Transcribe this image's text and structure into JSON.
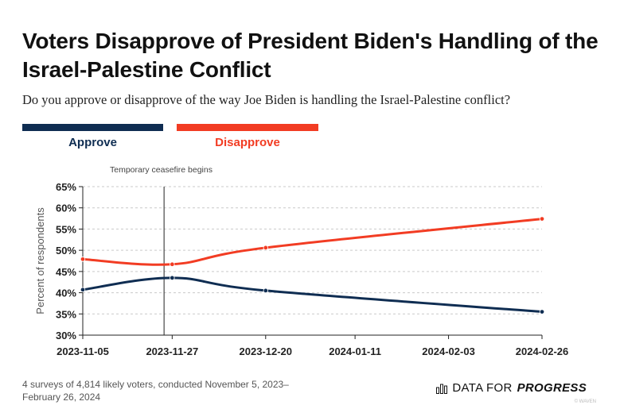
{
  "title": "Voters Disapprove of President Biden's Handling of the Israel-Palestine Conflict",
  "subtitle": "Do you approve or disapprove of the way Joe Biden is handling the Israel-Palestine conflict?",
  "colors": {
    "approve": "#0f2d52",
    "disapprove": "#f23c23",
    "grid": "#c9c9c9",
    "axis": "#222222"
  },
  "chart_data": {
    "type": "line",
    "title": "Voters Disapprove of President Biden's Handling of the Israel-Palestine Conflict",
    "subtitle": "Do you approve or disapprove of the way Joe Biden is handling the Israel-Palestine conflict?",
    "ylabel": "Percent of respondents",
    "xlabel": "",
    "x_ticks": [
      "2023-11-05",
      "2023-11-27",
      "2023-12-20",
      "2024-01-11",
      "2024-02-03",
      "2024-02-26"
    ],
    "ylim": [
      30,
      65
    ],
    "y_ticks": [
      "30%",
      "35%",
      "40%",
      "45%",
      "50%",
      "55%",
      "60%",
      "65%"
    ],
    "grid": "horizontal dashed",
    "legend_position": "top-left",
    "x": [
      "2023-11-05",
      "2023-11-27",
      "2023-12-20",
      "2024-02-26"
    ],
    "series": [
      {
        "name": "Approve",
        "values": [
          40.7,
          43.5,
          40.5,
          35.5
        ]
      },
      {
        "name": "Disapprove",
        "values": [
          47.9,
          46.7,
          50.6,
          57.4
        ]
      }
    ],
    "annotations": [
      {
        "x": "2023-11-25",
        "text": "Temporary ceasefire begins"
      }
    ]
  },
  "footer": {
    "note": "4 surveys of 4,814 likely voters, conducted November 5, 2023–February 26, 2024",
    "brand_prefix": "DATA FOR",
    "brand_strong": "PROGRESS",
    "credit": "© WAVEN"
  }
}
